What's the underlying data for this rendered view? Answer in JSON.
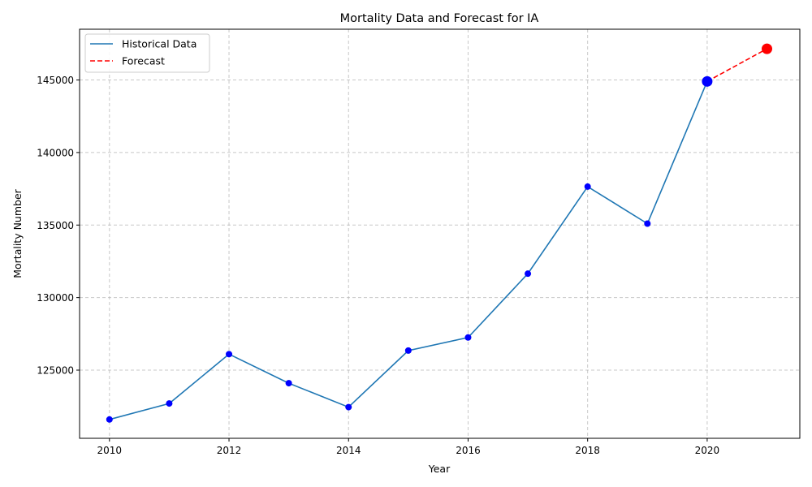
{
  "chart_data": {
    "type": "line",
    "title": "Mortality Data and Forecast for IA",
    "xlabel": "Year",
    "ylabel": "Mortality Number",
    "xlim": [
      2009.5,
      2021.55
    ],
    "ylim": [
      120300,
      148500
    ],
    "x_ticks": [
      2010,
      2012,
      2014,
      2016,
      2018,
      2020
    ],
    "x_tick_labels": [
      "2010",
      "2012",
      "2014",
      "2016",
      "2018",
      "2020"
    ],
    "y_ticks": [
      125000,
      130000,
      135000,
      140000,
      145000
    ],
    "y_tick_labels": [
      "125000",
      "130000",
      "135000",
      "140000",
      "145000"
    ],
    "grid": true,
    "legend_position": "top-left",
    "series": [
      {
        "name": "Historical Data",
        "style": "solid",
        "color": "#1f77b4",
        "marker_color": "#0000ff",
        "x": [
          2010,
          2011,
          2012,
          2013,
          2014,
          2015,
          2016,
          2017,
          2018,
          2019,
          2020
        ],
        "values": [
          121600,
          122700,
          126100,
          124100,
          122450,
          126350,
          127250,
          131650,
          137650,
          135100,
          144900
        ]
      },
      {
        "name": "Forecast",
        "style": "dashed",
        "color": "#ff0000",
        "marker_color": "#ff0000",
        "x": [
          2020,
          2021
        ],
        "values": [
          144900,
          147150
        ]
      }
    ]
  }
}
